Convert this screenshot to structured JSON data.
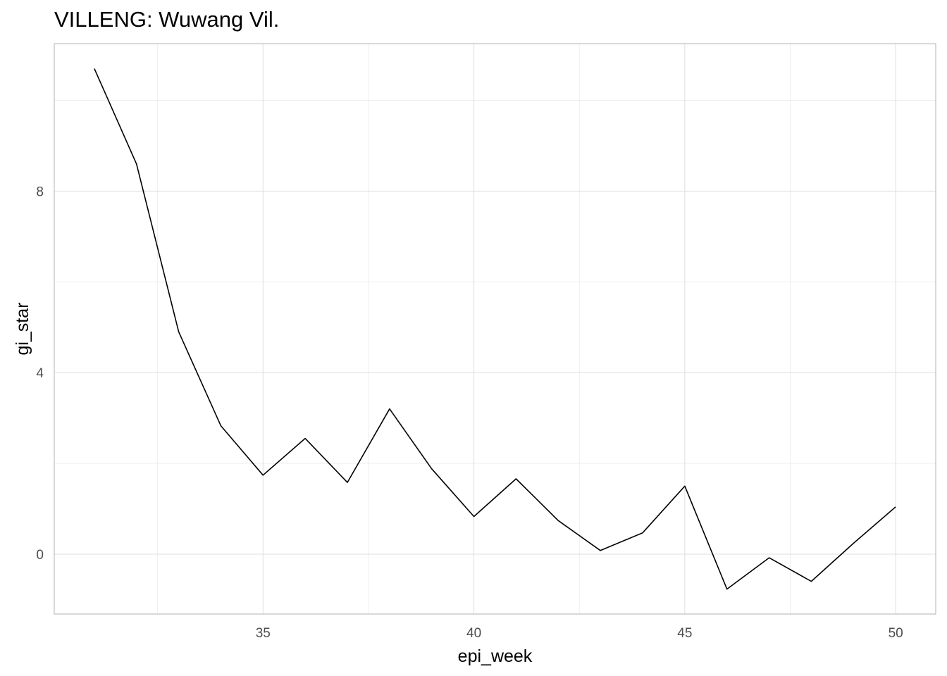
{
  "chart_data": {
    "type": "line",
    "title": "VILLENG: Wuwang Vil.",
    "xlabel": "epi_week",
    "ylabel": "gi_star",
    "xlim": [
      30.05,
      50.95
    ],
    "ylim": [
      -1.32,
      11.25
    ],
    "x_ticks": [
      35,
      40,
      45,
      50
    ],
    "x_tick_labels": [
      "35",
      "40",
      "45",
      "50"
    ],
    "y_ticks": [
      0,
      4,
      8
    ],
    "y_tick_labels": [
      "0",
      "4",
      "8"
    ],
    "grid": true,
    "line_color": "#000000",
    "series": [
      {
        "x": [
          31,
          32,
          33,
          34,
          35,
          36,
          37,
          38,
          39,
          40,
          41,
          42,
          43,
          44,
          45,
          46,
          47,
          48,
          49,
          50
        ],
        "y": [
          10.7,
          8.6,
          4.9,
          2.83,
          1.74,
          2.55,
          1.58,
          3.2,
          1.88,
          0.83,
          1.66,
          0.74,
          0.08,
          0.47,
          1.5,
          -0.77,
          -0.08,
          -0.6,
          0.24,
          1.04
        ]
      }
    ]
  }
}
